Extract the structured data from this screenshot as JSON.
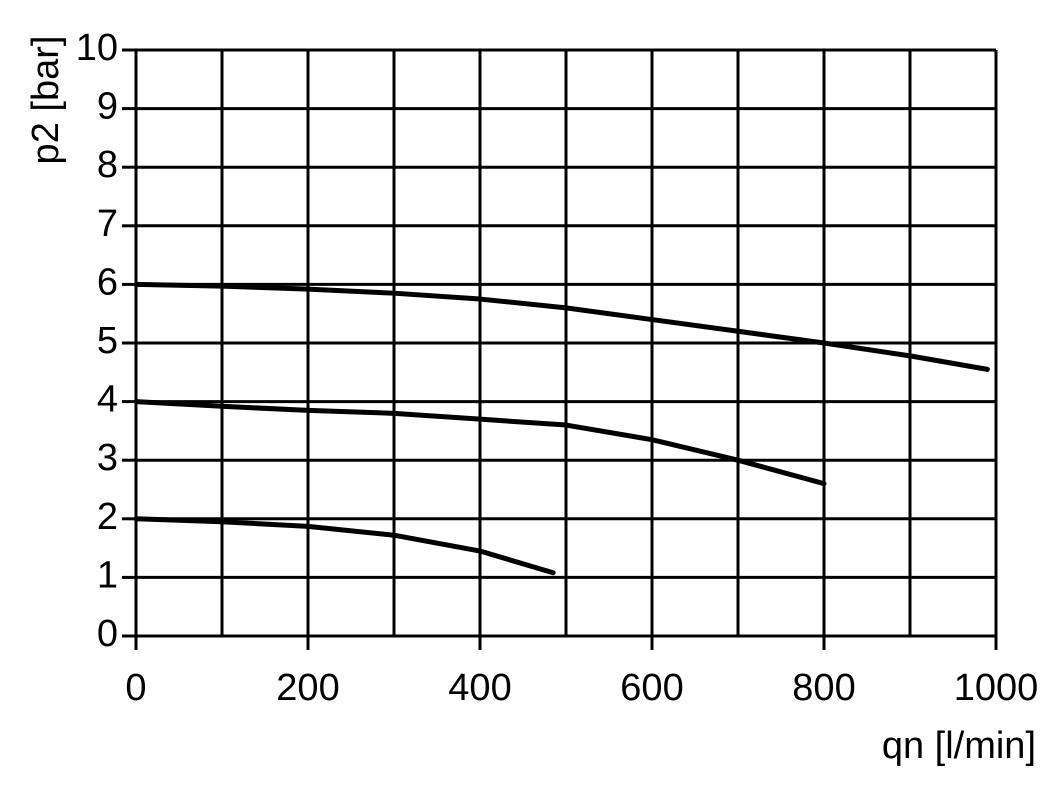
{
  "chart_data": {
    "type": "line",
    "y_label": "p2 [bar]",
    "x_label": "qn [l/min]",
    "xlim": [
      0,
      1000
    ],
    "xticks": [
      0,
      200,
      400,
      600,
      800,
      1000
    ],
    "xgrid": [
      0,
      100,
      200,
      300,
      400,
      500,
      600,
      700,
      800,
      900,
      1000
    ],
    "ylim": [
      0,
      10
    ],
    "yticks": [
      0,
      1,
      2,
      3,
      4,
      5,
      6,
      7,
      8,
      9,
      10
    ],
    "grid": true,
    "series": [
      {
        "color": "#000000",
        "x": [
          0,
          100,
          200,
          300,
          400,
          500,
          600,
          700,
          800,
          900,
          990
        ],
        "values": [
          6.0,
          5.97,
          5.92,
          5.85,
          5.75,
          5.6,
          5.4,
          5.2,
          5.0,
          4.78,
          4.55
        ]
      },
      {
        "color": "#000000",
        "x": [
          0,
          100,
          200,
          300,
          400,
          500,
          600,
          700,
          800
        ],
        "values": [
          4.0,
          3.92,
          3.85,
          3.8,
          3.7,
          3.6,
          3.35,
          3.0,
          2.6
        ]
      },
      {
        "color": "#000000",
        "x": [
          0,
          100,
          200,
          300,
          400,
          485
        ],
        "values": [
          2.0,
          1.95,
          1.87,
          1.72,
          1.45,
          1.08
        ]
      }
    ]
  }
}
